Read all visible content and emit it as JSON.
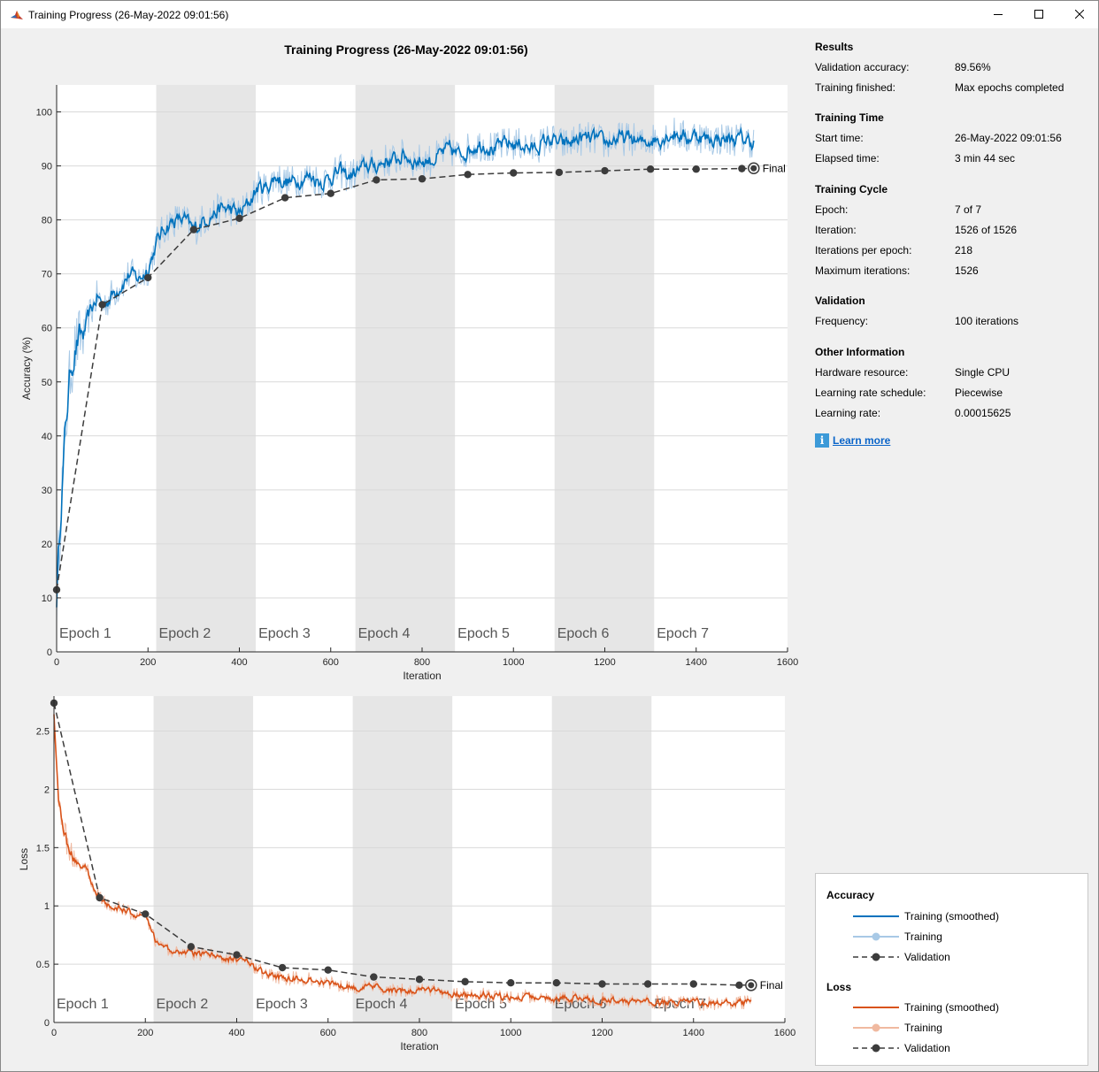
{
  "window": {
    "title": "Training Progress (26-May-2022 09:01:56)",
    "icon": "matlab-logo-icon"
  },
  "plot_title": "Training Progress (26-May-2022 09:01:56)",
  "colors": {
    "accuracy_smoothed": "#0072bd",
    "accuracy_raw": "#a8c9e6",
    "loss_smoothed": "#d95319",
    "loss_raw": "#f0b9a0",
    "validation": "#3c3c3c",
    "epoch_shade": "#e6e6e6",
    "link": "#0a64c8"
  },
  "chart_data": [
    {
      "type": "line",
      "ylabel": "Accuracy (%)",
      "xlabel": "Iteration",
      "xlim": [
        0,
        1600
      ],
      "ylim": [
        0,
        105
      ],
      "xticks": [
        0,
        200,
        400,
        600,
        800,
        1000,
        1200,
        1400,
        1600
      ],
      "yticks": [
        0,
        10,
        20,
        30,
        40,
        50,
        60,
        70,
        80,
        90,
        100
      ],
      "grid": true,
      "epoch_bands": [
        {
          "label": "Epoch 1",
          "start": 0,
          "end": 218,
          "shaded": false
        },
        {
          "label": "Epoch 2",
          "start": 218,
          "end": 436,
          "shaded": true
        },
        {
          "label": "Epoch 3",
          "start": 436,
          "end": 654,
          "shaded": false
        },
        {
          "label": "Epoch 4",
          "start": 654,
          "end": 872,
          "shaded": true
        },
        {
          "label": "Epoch 5",
          "start": 872,
          "end": 1090,
          "shaded": false
        },
        {
          "label": "Epoch 6",
          "start": 1090,
          "end": 1308,
          "shaded": true
        },
        {
          "label": "Epoch 7",
          "start": 1308,
          "end": 1526,
          "shaded": false
        }
      ],
      "series": [
        {
          "name": "Training (smoothed)",
          "x": [
            0,
            10,
            20,
            30,
            40,
            50,
            60,
            70,
            80,
            90,
            100,
            120,
            140,
            160,
            180,
            200,
            220,
            240,
            260,
            280,
            300,
            320,
            340,
            360,
            380,
            400,
            420,
            440,
            460,
            480,
            500,
            520,
            540,
            560,
            580,
            600,
            620,
            640,
            660,
            680,
            700,
            720,
            740,
            760,
            780,
            800,
            820,
            840,
            860,
            880,
            900,
            920,
            940,
            960,
            980,
            1000,
            1020,
            1040,
            1060,
            1080,
            1100,
            1120,
            1140,
            1160,
            1180,
            1200,
            1220,
            1240,
            1260,
            1280,
            1300,
            1320,
            1340,
            1360,
            1380,
            1400,
            1420,
            1440,
            1460,
            1480,
            1500,
            1526
          ],
          "y": [
            10,
            28,
            42,
            52,
            56,
            58,
            59,
            62,
            64,
            66,
            64,
            66,
            68,
            70,
            69,
            71,
            76,
            79,
            80,
            80,
            78,
            80,
            81,
            82,
            82,
            81,
            83,
            86,
            86,
            88,
            87,
            87,
            88,
            88,
            87,
            88,
            89,
            88,
            89,
            90,
            90,
            91,
            91,
            92,
            91,
            91,
            91,
            92,
            93,
            92,
            93,
            94,
            94,
            93,
            94,
            94,
            94,
            93,
            94,
            95,
            94,
            94,
            95,
            95,
            95,
            94,
            95,
            95,
            95,
            94,
            95,
            95,
            96,
            96,
            95,
            96,
            95,
            95,
            95,
            95,
            95,
            94.5
          ]
        },
        {
          "name": "Validation",
          "x": [
            0,
            100,
            200,
            300,
            400,
            500,
            600,
            700,
            800,
            900,
            1000,
            1100,
            1200,
            1300,
            1400,
            1500,
            1526
          ],
          "y": [
            11.5,
            64.3,
            69.3,
            78.2,
            80.3,
            84.1,
            84.9,
            87.4,
            87.6,
            88.4,
            88.7,
            88.8,
            89.1,
            89.4,
            89.4,
            89.5,
            89.56
          ]
        }
      ],
      "final_label": "Final"
    },
    {
      "type": "line",
      "ylabel": "Loss",
      "xlabel": "Iteration",
      "xlim": [
        0,
        1600
      ],
      "ylim": [
        0,
        2.8
      ],
      "xticks": [
        0,
        200,
        400,
        600,
        800,
        1000,
        1200,
        1400,
        1600
      ],
      "yticks": [
        0,
        0.5,
        1,
        1.5,
        2,
        2.5
      ],
      "ytick_labels": [
        "0",
        "0.5",
        "1",
        "1.5",
        "2",
        "2.5"
      ],
      "grid": true,
      "epoch_bands": [
        {
          "label": "Epoch 1",
          "start": 0,
          "end": 218,
          "shaded": false
        },
        {
          "label": "Epoch 2",
          "start": 218,
          "end": 436,
          "shaded": true
        },
        {
          "label": "Epoch 3",
          "start": 436,
          "end": 654,
          "shaded": false
        },
        {
          "label": "Epoch 4",
          "start": 654,
          "end": 872,
          "shaded": true
        },
        {
          "label": "Epoch 5",
          "start": 872,
          "end": 1090,
          "shaded": false
        },
        {
          "label": "Epoch 6",
          "start": 1090,
          "end": 1308,
          "shaded": true
        },
        {
          "label": "Epoch 7",
          "start": 1308,
          "end": 1526,
          "shaded": false
        }
      ],
      "series": [
        {
          "name": "Training (smoothed)",
          "x": [
            0,
            5,
            10,
            20,
            30,
            40,
            50,
            60,
            70,
            80,
            90,
            100,
            120,
            140,
            160,
            180,
            200,
            220,
            240,
            260,
            280,
            300,
            340,
            380,
            420,
            460,
            500,
            540,
            580,
            620,
            660,
            700,
            740,
            780,
            820,
            860,
            900,
            940,
            980,
            1020,
            1060,
            1100,
            1140,
            1180,
            1220,
            1260,
            1300,
            1340,
            1380,
            1420,
            1460,
            1500,
            1526
          ],
          "y": [
            2.65,
            2.3,
            1.95,
            1.7,
            1.5,
            1.42,
            1.38,
            1.33,
            1.35,
            1.22,
            1.15,
            1.08,
            1.0,
            0.98,
            0.95,
            0.92,
            0.9,
            0.72,
            0.62,
            0.62,
            0.6,
            0.6,
            0.58,
            0.55,
            0.52,
            0.42,
            0.38,
            0.38,
            0.36,
            0.33,
            0.3,
            0.3,
            0.28,
            0.27,
            0.28,
            0.25,
            0.23,
            0.24,
            0.22,
            0.22,
            0.21,
            0.2,
            0.21,
            0.19,
            0.2,
            0.18,
            0.18,
            0.17,
            0.18,
            0.16,
            0.17,
            0.17,
            0.18
          ]
        },
        {
          "name": "Validation",
          "x": [
            0,
            100,
            200,
            300,
            400,
            500,
            600,
            700,
            800,
            900,
            1000,
            1100,
            1200,
            1300,
            1400,
            1500,
            1526
          ],
          "y": [
            2.74,
            1.07,
            0.93,
            0.65,
            0.58,
            0.47,
            0.45,
            0.39,
            0.37,
            0.35,
            0.34,
            0.34,
            0.33,
            0.33,
            0.33,
            0.32,
            0.32
          ]
        }
      ],
      "final_label": "Final"
    }
  ],
  "panel": {
    "results": {
      "title": "Results",
      "validation_accuracy_label": "Validation accuracy:",
      "validation_accuracy_value": "89.56%",
      "training_finished_label": "Training finished:",
      "training_finished_value": "Max epochs completed"
    },
    "training_time": {
      "title": "Training Time",
      "start_label": "Start time:",
      "start_value": "26-May-2022 09:01:56",
      "elapsed_label": "Elapsed time:",
      "elapsed_value": "3 min 44 sec"
    },
    "training_cycle": {
      "title": "Training Cycle",
      "epoch_label": "Epoch:",
      "epoch_value": "7 of 7",
      "iteration_label": "Iteration:",
      "iteration_value": "1526 of 1526",
      "ipe_label": "Iterations per epoch:",
      "ipe_value": "218",
      "max_label": "Maximum iterations:",
      "max_value": "1526"
    },
    "validation": {
      "title": "Validation",
      "frequency_label": "Frequency:",
      "frequency_value": "100 iterations"
    },
    "other": {
      "title": "Other Information",
      "hardware_label": "Hardware resource:",
      "hardware_value": "Single CPU",
      "schedule_label": "Learning rate schedule:",
      "schedule_value": "Piecewise",
      "rate_label": "Learning rate:",
      "rate_value": "0.00015625"
    },
    "learn_more": "Learn more"
  },
  "legend": {
    "accuracy_title": "Accuracy",
    "loss_title": "Loss",
    "smoothed": "Training (smoothed)",
    "training": "Training",
    "validation": "Validation"
  }
}
